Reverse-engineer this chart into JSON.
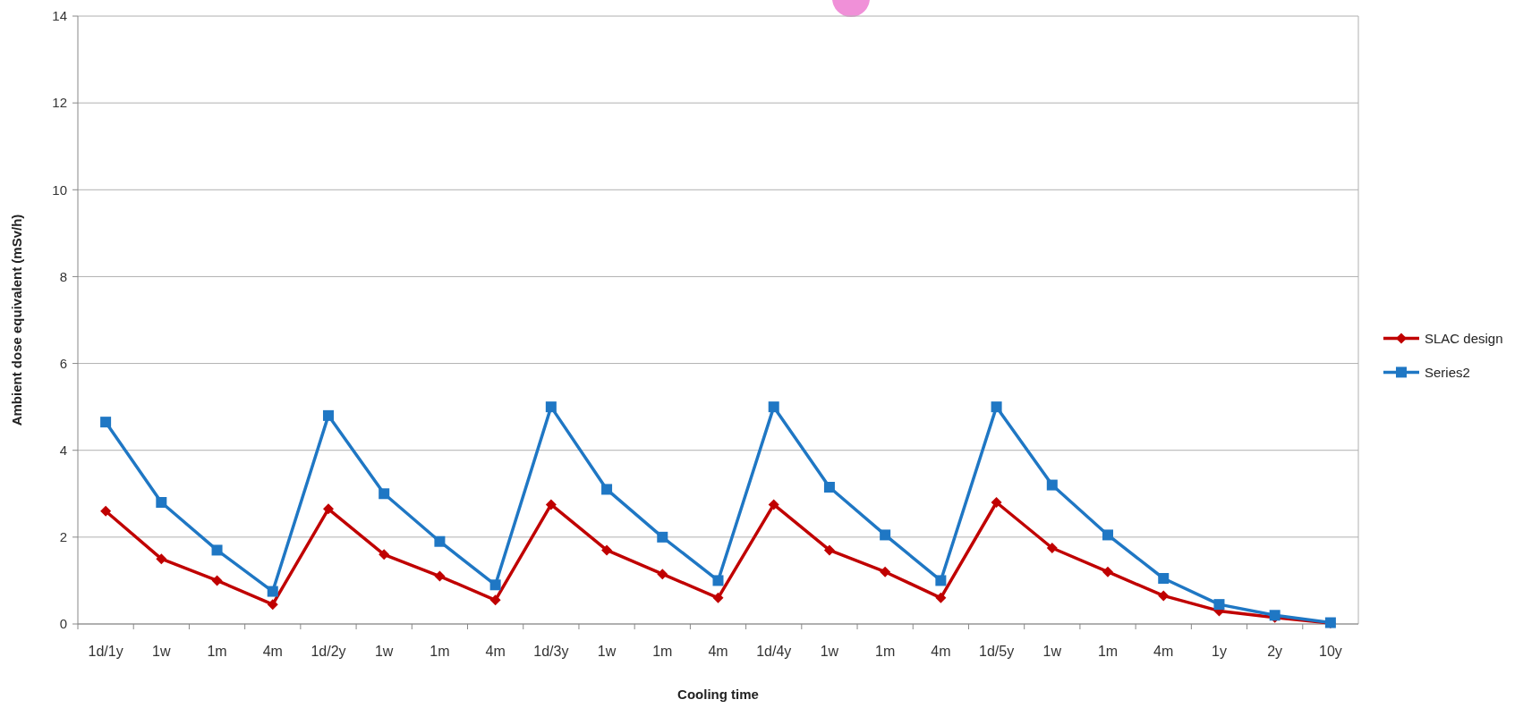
{
  "chart_data": {
    "type": "line",
    "xlabel": "Cooling time",
    "ylabel": "Ambient dose equivalent (mSv/h)",
    "categories": [
      "1d/1y",
      "1w",
      "1m",
      "4m",
      "1d/2y",
      "1w",
      "1m",
      "4m",
      "1d/3y",
      "1w",
      "1m",
      "4m",
      "1d/4y",
      "1w",
      "1m",
      "4m",
      "1d/5y",
      "1w",
      "1m",
      "4m",
      "1y",
      "2y",
      "10y"
    ],
    "series": [
      {
        "name": "SLAC design",
        "color": "#c00000",
        "marker": "diamond",
        "values": [
          2.6,
          1.5,
          1.0,
          0.45,
          2.65,
          1.6,
          1.1,
          0.55,
          2.75,
          1.7,
          1.15,
          0.6,
          2.75,
          1.7,
          1.2,
          0.6,
          2.8,
          1.75,
          1.2,
          0.65,
          0.3,
          0.15,
          0.02
        ]
      },
      {
        "name": "Series2",
        "color": "#1f77c4",
        "marker": "square",
        "values": [
          4.65,
          2.8,
          1.7,
          0.75,
          4.8,
          3.0,
          1.9,
          0.9,
          5.0,
          3.1,
          2.0,
          1.0,
          5.0,
          3.15,
          2.05,
          1.0,
          5.0,
          3.2,
          2.05,
          1.05,
          0.45,
          0.2,
          0.03
        ]
      }
    ],
    "ylim": [
      0,
      14
    ],
    "yticks": [
      0,
      2,
      4,
      6,
      8,
      10,
      12,
      14
    ],
    "grid": "y",
    "legend": "right",
    "line_style": "solid"
  }
}
